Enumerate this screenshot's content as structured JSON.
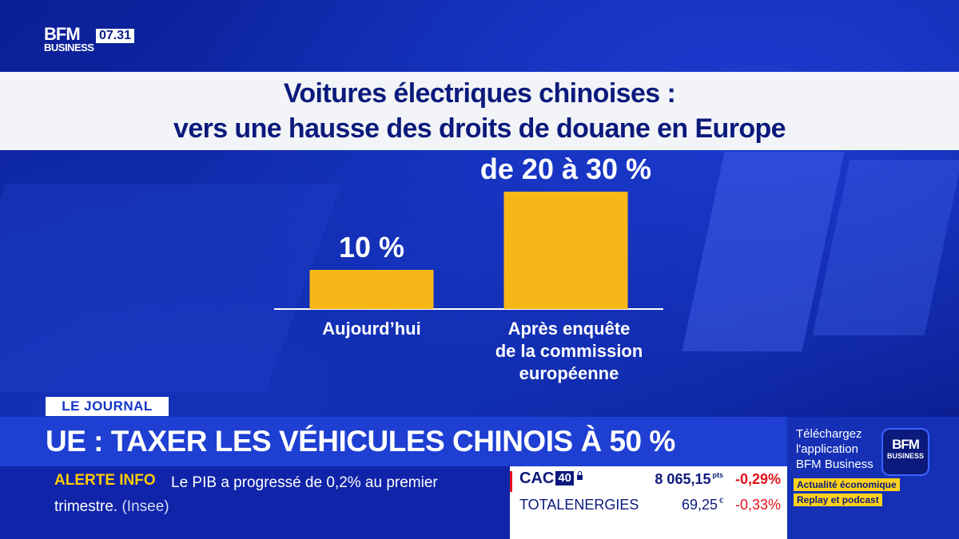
{
  "broadcast": {
    "logo_top": "BFM",
    "logo_bottom": "BUSINESS",
    "clock": "07.31"
  },
  "graphic": {
    "title_line1": "Voitures électriques chinoises :",
    "title_line2": "vers une hausse des droits de douane en Europe"
  },
  "chart_data": {
    "type": "bar",
    "title": "Voitures électriques chinoises : vers une hausse des droits de douane en Europe",
    "categories": [
      "Aujourd’hui",
      "Après enquête de la commission européenne"
    ],
    "category_lines": [
      [
        "Aujourd’hui"
      ],
      [
        "Après enquête",
        "de la commission",
        "européenne"
      ]
    ],
    "values": [
      10,
      30
    ],
    "value_ranges": [
      [
        10,
        10
      ],
      [
        20,
        30
      ]
    ],
    "data_labels": [
      "10 %",
      "de 20 à 30 %"
    ],
    "unit": "%",
    "color": "#f7b719",
    "grid": false,
    "legend": "none"
  },
  "lower_third": {
    "tag": "LE JOURNAL",
    "headline": "UE : TAXER LES VÉHICULES CHINOIS À 50 %",
    "alert_label": "ALERTE INFO",
    "alert_text": "Le PIB a progressé de 0,2% au premier trimestre.",
    "alert_source": "(Insee)"
  },
  "market": {
    "rows": [
      {
        "name": "CAC",
        "badge": "40",
        "value": "8 065,15",
        "unit": "pts",
        "change": "-0,29%"
      },
      {
        "name": "TOTALENERGIES",
        "value": "69,25",
        "unit": "€",
        "change": "-0,33%"
      }
    ]
  },
  "promo": {
    "text": "Téléchargez l'application BFM Business",
    "logo_top": "BFM",
    "logo_bottom": "BUSINESS",
    "chip1": "Actualité économique",
    "chip2": "Replay et podcast"
  },
  "colors": {
    "background": "#0f2cb0",
    "bar": "#f7b719",
    "headline_band": "#1e3fd2",
    "alert": "#ffcb05",
    "negative": "#e0131b"
  }
}
